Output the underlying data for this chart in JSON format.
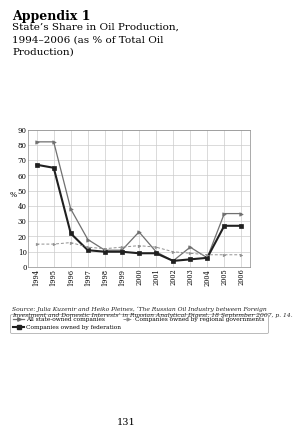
{
  "years": [
    1994,
    1995,
    1996,
    1997,
    1998,
    1999,
    2000,
    2001,
    2002,
    2003,
    2004,
    2005,
    2006
  ],
  "all_state": [
    82,
    82,
    38,
    18,
    11,
    11,
    23,
    10,
    4,
    13,
    6,
    35,
    35
  ],
  "fed_owned": [
    67,
    65,
    22,
    11,
    10,
    10,
    9,
    9,
    4,
    5,
    6,
    27,
    27
  ],
  "regional": [
    15,
    15,
    16,
    13,
    12,
    13,
    14,
    13,
    10,
    9,
    8,
    8,
    8
  ],
  "ylabel": "%",
  "ylim": [
    0,
    90
  ],
  "yticks": [
    0,
    10,
    20,
    30,
    40,
    50,
    60,
    70,
    80,
    90
  ],
  "xtick_labels": [
    "1994",
    "1995",
    "1996",
    "1997",
    "1998",
    "1999",
    "2000",
    "2001",
    "2002",
    "2003",
    "2004",
    "2005",
    "2006"
  ],
  "title1": "Appendix 1",
  "title2": "State’s Share in Oil Production,\n1994–2006 (as % of Total Oil\nProduction)",
  "legend1": "All state-owned companies",
  "legend2": "Companies owned by federation",
  "legend3": "Companies owned by regional governments",
  "source": "Source: Julia Kuzenir and Heiko Pleines, ‘The Russian Oil Industry between Foreign\nInvestment and Domestic Interests’ in Russian Analytical Digest, 18 September 2007, p. 14.",
  "page": "131",
  "bg_color": "#ffffff",
  "line1_color": "#707070",
  "line2_color": "#202020",
  "line3_color": "#909090",
  "grid_color": "#cccccc"
}
